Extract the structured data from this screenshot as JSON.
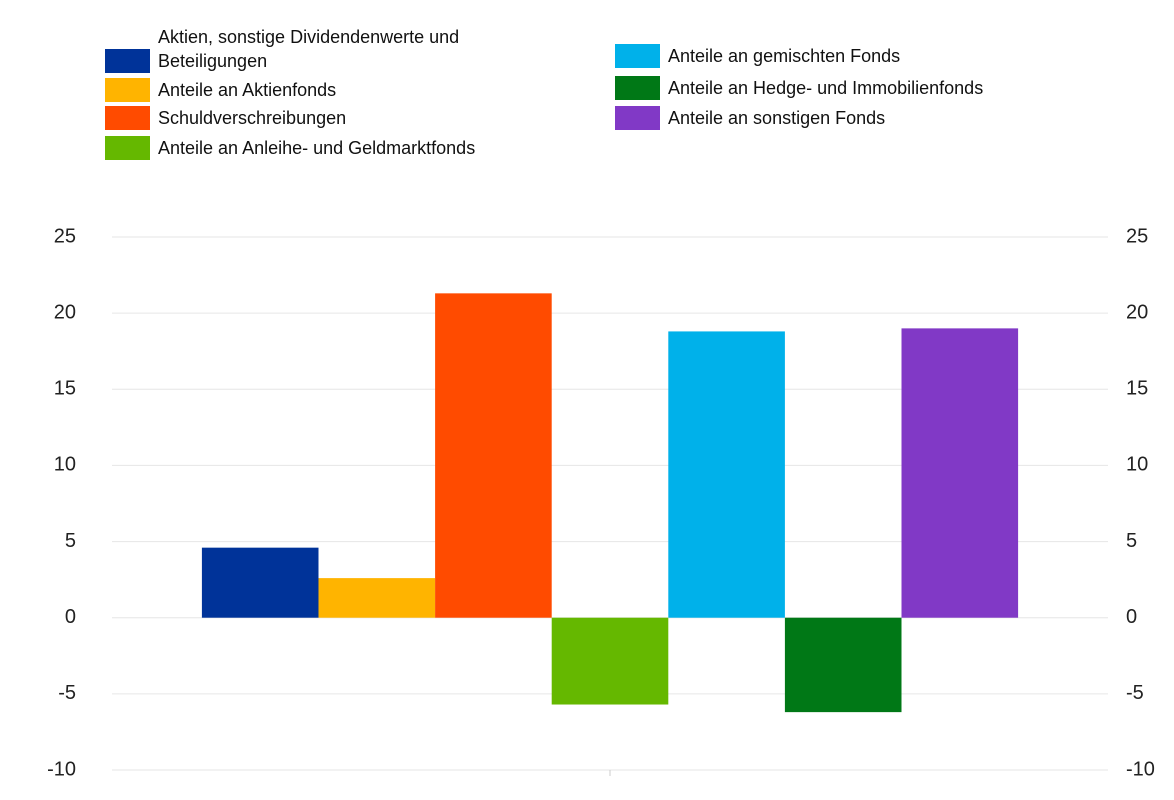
{
  "chart_data": {
    "type": "bar",
    "categories": [
      null
    ],
    "series": [
      {
        "name": "Aktien, sonstige Dividendenwerte und Beteiligungen",
        "color": "#003399",
        "values": [
          4.6
        ]
      },
      {
        "name": "Anteile an Aktienfonds",
        "color": "#ffb400",
        "values": [
          2.6
        ]
      },
      {
        "name": "Schuldverschreibungen",
        "color": "#ff4b00",
        "values": [
          21.3
        ]
      },
      {
        "name": "Anteile an Anleihe- und Geldmarktfonds",
        "color": "#65b800",
        "values": [
          -5.7
        ]
      },
      {
        "name": "Anteile an gemischten Fonds",
        "color": "#00b1ea",
        "values": [
          18.8
        ]
      },
      {
        "name": "Anteile an Hedge- und Immobilienfonds",
        "color": "#007816",
        "values": [
          -6.2
        ]
      },
      {
        "name": "Anteile an sonstigen Fonds",
        "color": "#8139c6",
        "values": [
          19.0
        ]
      }
    ],
    "ylim": [
      -10,
      25
    ],
    "yticks": [
      -10,
      -5,
      0,
      5,
      10,
      15,
      20,
      25
    ],
    "y2lim": [
      -10,
      25
    ],
    "y2ticks": [
      -10,
      -5,
      0,
      5,
      10,
      15,
      20,
      25
    ],
    "grid": true,
    "legend": "top"
  }
}
